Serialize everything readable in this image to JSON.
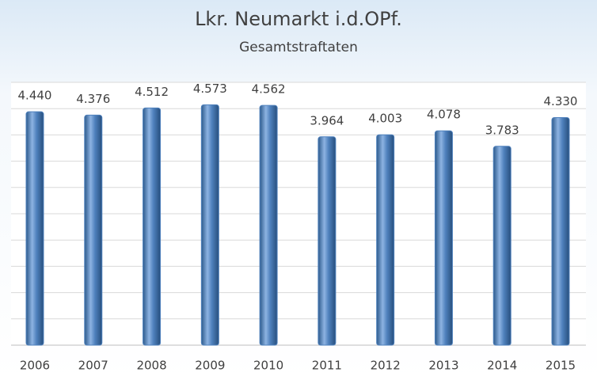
{
  "chart_data": {
    "type": "bar",
    "title": "Lkr. Neumarkt i.d.OPf.",
    "subtitle": "Gesamtstraftaten",
    "categories": [
      "2006",
      "2007",
      "2008",
      "2009",
      "2010",
      "2011",
      "2012",
      "2013",
      "2014",
      "2015"
    ],
    "values": [
      4440,
      4376,
      4512,
      4573,
      4562,
      3964,
      4003,
      4078,
      3783,
      4330
    ],
    "value_labels": [
      "4.440",
      "4.376",
      "4.512",
      "4.573",
      "4.562",
      "3.964",
      "4.003",
      "4.078",
      "3.783",
      "4.330"
    ],
    "color": "#4f81bd",
    "ylim": [
      0,
      5000
    ],
    "yticks": [
      0,
      500,
      1000,
      1500,
      2000,
      2500,
      3000,
      3500,
      4000,
      4500,
      5000
    ],
    "grid": true
  }
}
